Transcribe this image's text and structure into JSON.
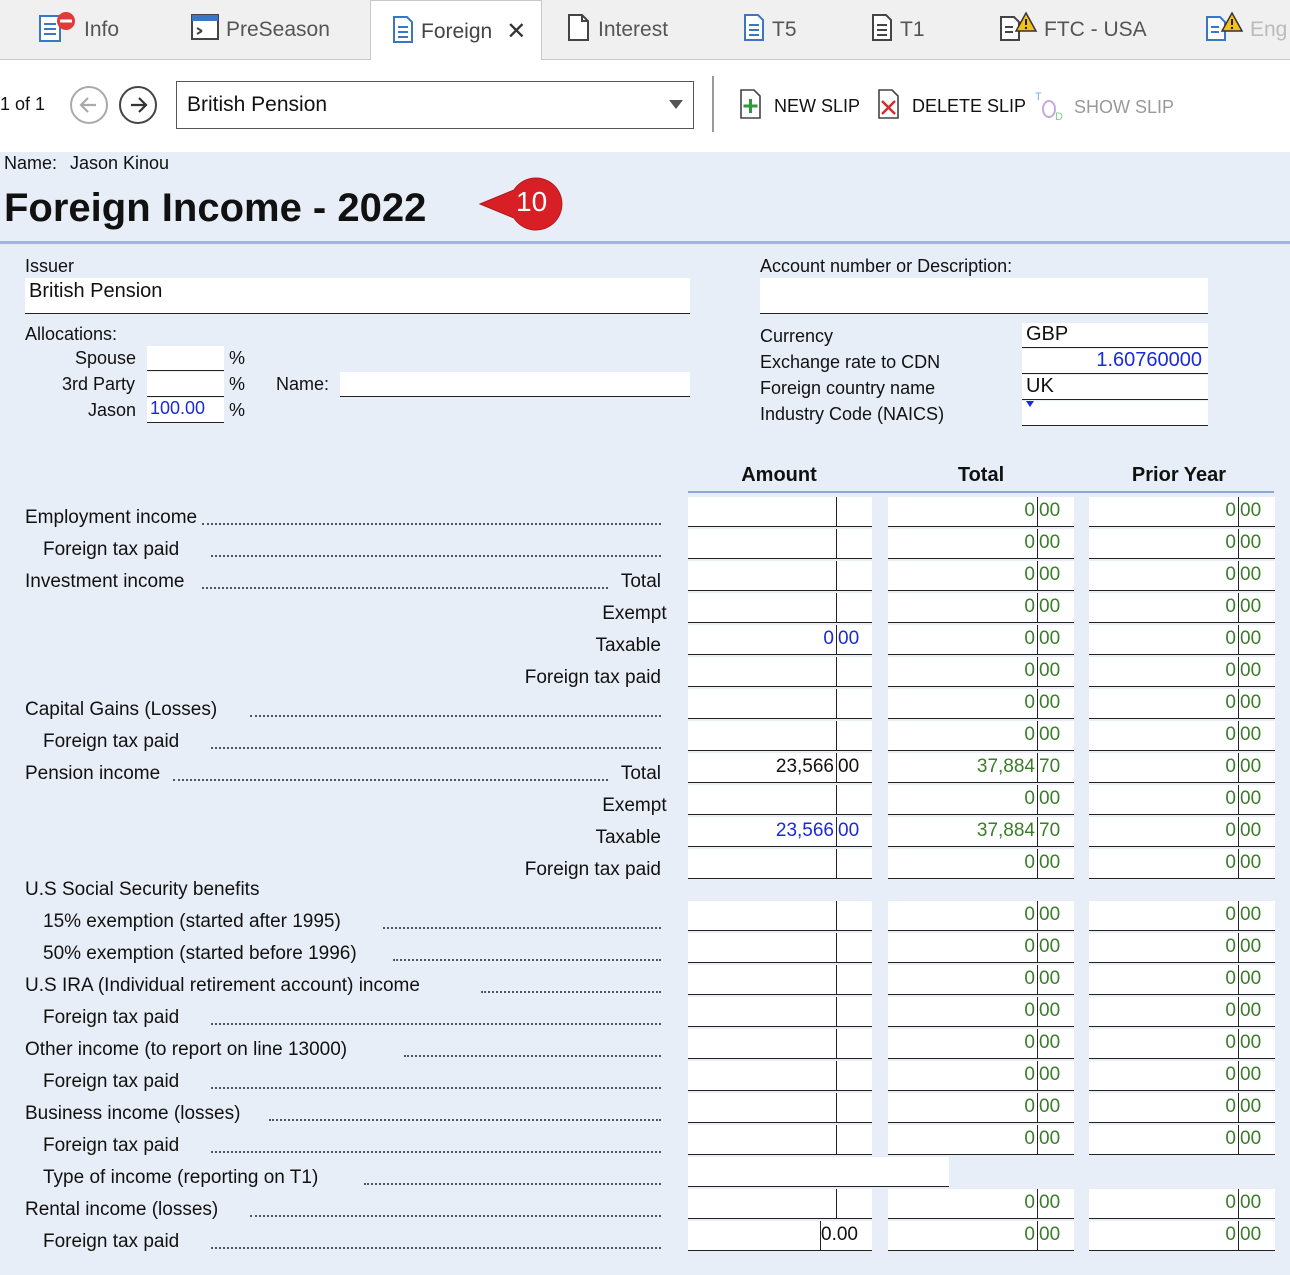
{
  "tabs": [
    {
      "label": "Info",
      "icon": "doc-error-icon"
    },
    {
      "label": "PreSeason",
      "icon": "preseason-icon"
    },
    {
      "label": "Foreign",
      "icon": "doc-icon",
      "active": true
    },
    {
      "label": "Interest",
      "icon": "blank-doc-icon"
    },
    {
      "label": "T5",
      "icon": "doc-icon"
    },
    {
      "label": "T1",
      "icon": "doc-icon"
    },
    {
      "label": "FTC - USA",
      "icon": "doc-warning-icon"
    },
    {
      "label": "Eng",
      "icon": "doc-warning-icon"
    }
  ],
  "toolbar": {
    "pager": "1 of 1",
    "slip_select": "British Pension",
    "new_slip": "NEW SLIP",
    "delete_slip": "DELETE SLIP",
    "show_slip": "SHOW SLIP"
  },
  "header": {
    "name_label": "Name:",
    "name_value": "Jason Kinou",
    "title": "Foreign Income - 2022",
    "badge": "10"
  },
  "form": {
    "issuer_label": "Issuer",
    "issuer_value": "British Pension",
    "account_label": "Account number or Description:",
    "account_value": "",
    "allocations_label": "Allocations:",
    "spouse_label": "Spouse",
    "spouse_value": "",
    "third_party_label": "3rd Party",
    "third_party_value": "",
    "third_name_label": "Name:",
    "third_name_value": "",
    "jason_label": "Jason",
    "jason_value": "100.00",
    "pct": "%",
    "currency_label": "Currency",
    "currency_value": "GBP",
    "exchange_label": "Exchange rate to CDN",
    "exchange_value": "1.60760000",
    "country_label": "Foreign country name",
    "country_value": "UK",
    "naics_label": "Industry Code (NAICS)",
    "naics_value": ""
  },
  "columns": {
    "amount": "Amount",
    "total": "Total",
    "prior": "Prior Year"
  },
  "rows": [
    {
      "label": "Employment income",
      "indent": false,
      "suffix": "",
      "amt": [
        "",
        ""
      ],
      "amt_color": "blk",
      "total": [
        "0",
        "00"
      ],
      "prior": [
        "0",
        "00"
      ]
    },
    {
      "label": "Foreign tax paid",
      "indent": true,
      "suffix": "",
      "amt": [
        "",
        ""
      ],
      "amt_color": "blk",
      "total": [
        "0",
        "00"
      ],
      "prior": [
        "0",
        "00"
      ]
    },
    {
      "label": "Investment income",
      "indent": false,
      "suffix": "Total",
      "amt": [
        "",
        ""
      ],
      "amt_color": "blk",
      "total": [
        "0",
        "00"
      ],
      "prior": [
        "0",
        "00"
      ]
    },
    {
      "label": "",
      "indent": false,
      "suffix": "Exempt",
      "amt": [
        "",
        ""
      ],
      "amt_color": "blk",
      "total": [
        "0",
        "00"
      ],
      "prior": [
        "0",
        "00"
      ]
    },
    {
      "label": "",
      "indent": false,
      "suffix": "Taxable",
      "amt": [
        "0",
        "00"
      ],
      "amt_color": "blue",
      "total": [
        "0",
        "00"
      ],
      "prior": [
        "0",
        "00"
      ]
    },
    {
      "label": "",
      "indent": false,
      "suffix": "Foreign tax paid",
      "amt": [
        "",
        ""
      ],
      "amt_color": "blk",
      "total": [
        "0",
        "00"
      ],
      "prior": [
        "0",
        "00"
      ]
    },
    {
      "label": "Capital Gains (Losses)",
      "indent": false,
      "suffix": "",
      "amt": [
        "",
        ""
      ],
      "amt_color": "blk",
      "total": [
        "0",
        "00"
      ],
      "prior": [
        "0",
        "00"
      ]
    },
    {
      "label": "Foreign tax paid",
      "indent": true,
      "suffix": "",
      "amt": [
        "",
        ""
      ],
      "amt_color": "blk",
      "total": [
        "0",
        "00"
      ],
      "prior": [
        "0",
        "00"
      ]
    },
    {
      "label": "Pension income",
      "indent": false,
      "suffix": "Total",
      "amt": [
        "23,566",
        "00"
      ],
      "amt_color": "blk",
      "total": [
        "37,884",
        "70"
      ],
      "prior": [
        "0",
        "00"
      ]
    },
    {
      "label": "",
      "indent": false,
      "suffix": "Exempt",
      "amt": [
        "",
        ""
      ],
      "amt_color": "blk",
      "total": [
        "0",
        "00"
      ],
      "prior": [
        "0",
        "00"
      ]
    },
    {
      "label": "",
      "indent": false,
      "suffix": "Taxable",
      "amt": [
        "23,566",
        "00"
      ],
      "amt_color": "blue",
      "total": [
        "37,884",
        "70"
      ],
      "prior": [
        "0",
        "00"
      ]
    },
    {
      "label": "",
      "indent": false,
      "suffix": "Foreign tax paid",
      "amt": [
        "",
        ""
      ],
      "amt_color": "blk",
      "total": [
        "0",
        "00"
      ],
      "prior": [
        "0",
        "00"
      ]
    }
  ],
  "ss_label": "U.S Social Security benefits",
  "rows2": [
    {
      "label": "15% exemption (started after 1995)",
      "indent": true,
      "total": [
        "0",
        "00"
      ],
      "prior": [
        "0",
        "00"
      ]
    },
    {
      "label": "50% exemption (started before 1996)",
      "indent": true,
      "total": [
        "0",
        "00"
      ],
      "prior": [
        "0",
        "00"
      ]
    },
    {
      "label": "U.S IRA (Individual retirement account) income",
      "indent": false,
      "total": [
        "0",
        "00"
      ],
      "prior": [
        "0",
        "00"
      ]
    },
    {
      "label": "Foreign tax paid",
      "indent": true,
      "total": [
        "0",
        "00"
      ],
      "prior": [
        "0",
        "00"
      ]
    },
    {
      "label": "Other income (to report on line 13000)",
      "indent": false,
      "total": [
        "0",
        "00"
      ],
      "prior": [
        "0",
        "00"
      ]
    },
    {
      "label": "Foreign tax paid",
      "indent": true,
      "total": [
        "0",
        "00"
      ],
      "prior": [
        "0",
        "00"
      ]
    },
    {
      "label": "Business income (losses)",
      "indent": false,
      "total": [
        "0",
        "00"
      ],
      "prior": [
        "0",
        "00"
      ]
    },
    {
      "label": "Foreign tax paid",
      "indent": true,
      "total": [
        "0",
        "00"
      ],
      "prior": [
        "0",
        "00"
      ]
    }
  ],
  "type_income_label": "Type of income (reporting on T1)",
  "type_income_value": "",
  "rows3": [
    {
      "label": "Rental income (losses)",
      "indent": false,
      "amt": "",
      "total": [
        "0",
        "00"
      ],
      "prior": [
        "0",
        "00"
      ]
    },
    {
      "label": "Foreign tax paid",
      "indent": true,
      "amt": "0.00",
      "total": [
        "0",
        "00"
      ],
      "prior": [
        "0",
        "00"
      ]
    }
  ]
}
